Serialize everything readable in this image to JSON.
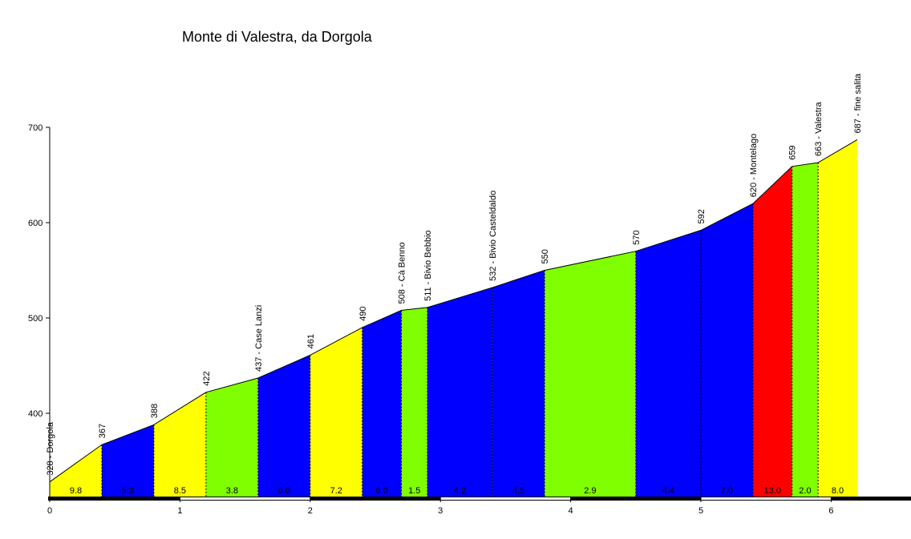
{
  "chart_data": {
    "type": "area",
    "title": "Monte di Valestra, da Dorgola",
    "xlabel": "",
    "ylabel": "",
    "xlim": [
      0,
      6.2
    ],
    "ylim": [
      320,
      700
    ],
    "x_ticks": [
      0,
      1,
      2,
      3,
      4,
      5,
      6
    ],
    "y_ticks": [
      400,
      500,
      600,
      700
    ],
    "grid": false,
    "points": [
      {
        "km": 0.0,
        "alt": 328,
        "label": "328 - Dorgola"
      },
      {
        "km": 0.4,
        "alt": 367,
        "label": "367"
      },
      {
        "km": 0.8,
        "alt": 388,
        "label": "388"
      },
      {
        "km": 1.2,
        "alt": 422,
        "label": "422"
      },
      {
        "km": 1.6,
        "alt": 437,
        "label": "437 - Case Lanzi"
      },
      {
        "km": 2.0,
        "alt": 461,
        "label": "461"
      },
      {
        "km": 2.4,
        "alt": 490,
        "label": "490"
      },
      {
        "km": 2.7,
        "alt": 508,
        "label": "508 - Cà Benno"
      },
      {
        "km": 2.9,
        "alt": 511,
        "label": "511 - Bivio Bebbio"
      },
      {
        "km": 3.4,
        "alt": 532,
        "label": "532 - Bivio Casteldaldo"
      },
      {
        "km": 3.8,
        "alt": 550,
        "label": "550"
      },
      {
        "km": 4.5,
        "alt": 570,
        "label": "570"
      },
      {
        "km": 5.0,
        "alt": 592,
        "label": "592"
      },
      {
        "km": 5.4,
        "alt": 620,
        "label": "620 - Montelago"
      },
      {
        "km": 5.7,
        "alt": 659,
        "label": "659"
      },
      {
        "km": 5.9,
        "alt": 663,
        "label": "663 - Valestra"
      },
      {
        "km": 6.2,
        "alt": 687,
        "label": "687 - fine salita"
      }
    ],
    "segments": [
      {
        "from": 0.0,
        "to": 0.4,
        "gradient": "9.8",
        "color": "#ffff00"
      },
      {
        "from": 0.4,
        "to": 0.8,
        "gradient": "5.3",
        "color": "#0000ff"
      },
      {
        "from": 0.8,
        "to": 1.2,
        "gradient": "8.5",
        "color": "#ffff00"
      },
      {
        "from": 1.2,
        "to": 1.6,
        "gradient": "3.8",
        "color": "#80ff00"
      },
      {
        "from": 1.6,
        "to": 2.0,
        "gradient": "6.0",
        "color": "#0000ff"
      },
      {
        "from": 2.0,
        "to": 2.4,
        "gradient": "7.2",
        "color": "#ffff00"
      },
      {
        "from": 2.4,
        "to": 2.7,
        "gradient": "6.0",
        "color": "#0000ff"
      },
      {
        "from": 2.7,
        "to": 2.9,
        "gradient": "1.5",
        "color": "#80ff00"
      },
      {
        "from": 2.9,
        "to": 3.4,
        "gradient": "4.2",
        "color": "#0000ff"
      },
      {
        "from": 3.4,
        "to": 3.8,
        "gradient": "4.5",
        "color": "#0000ff"
      },
      {
        "from": 3.8,
        "to": 4.5,
        "gradient": "2.9",
        "color": "#80ff00"
      },
      {
        "from": 4.5,
        "to": 5.0,
        "gradient": "4.4",
        "color": "#0000ff"
      },
      {
        "from": 5.0,
        "to": 5.4,
        "gradient": "7.0",
        "color": "#0000ff"
      },
      {
        "from": 5.4,
        "to": 5.7,
        "gradient": "13.0",
        "color": "#ff0000"
      },
      {
        "from": 5.7,
        "to": 5.9,
        "gradient": "2.0",
        "color": "#80ff00"
      },
      {
        "from": 5.9,
        "to": 6.2,
        "gradient": "8.0",
        "color": "#ffff00"
      }
    ]
  }
}
